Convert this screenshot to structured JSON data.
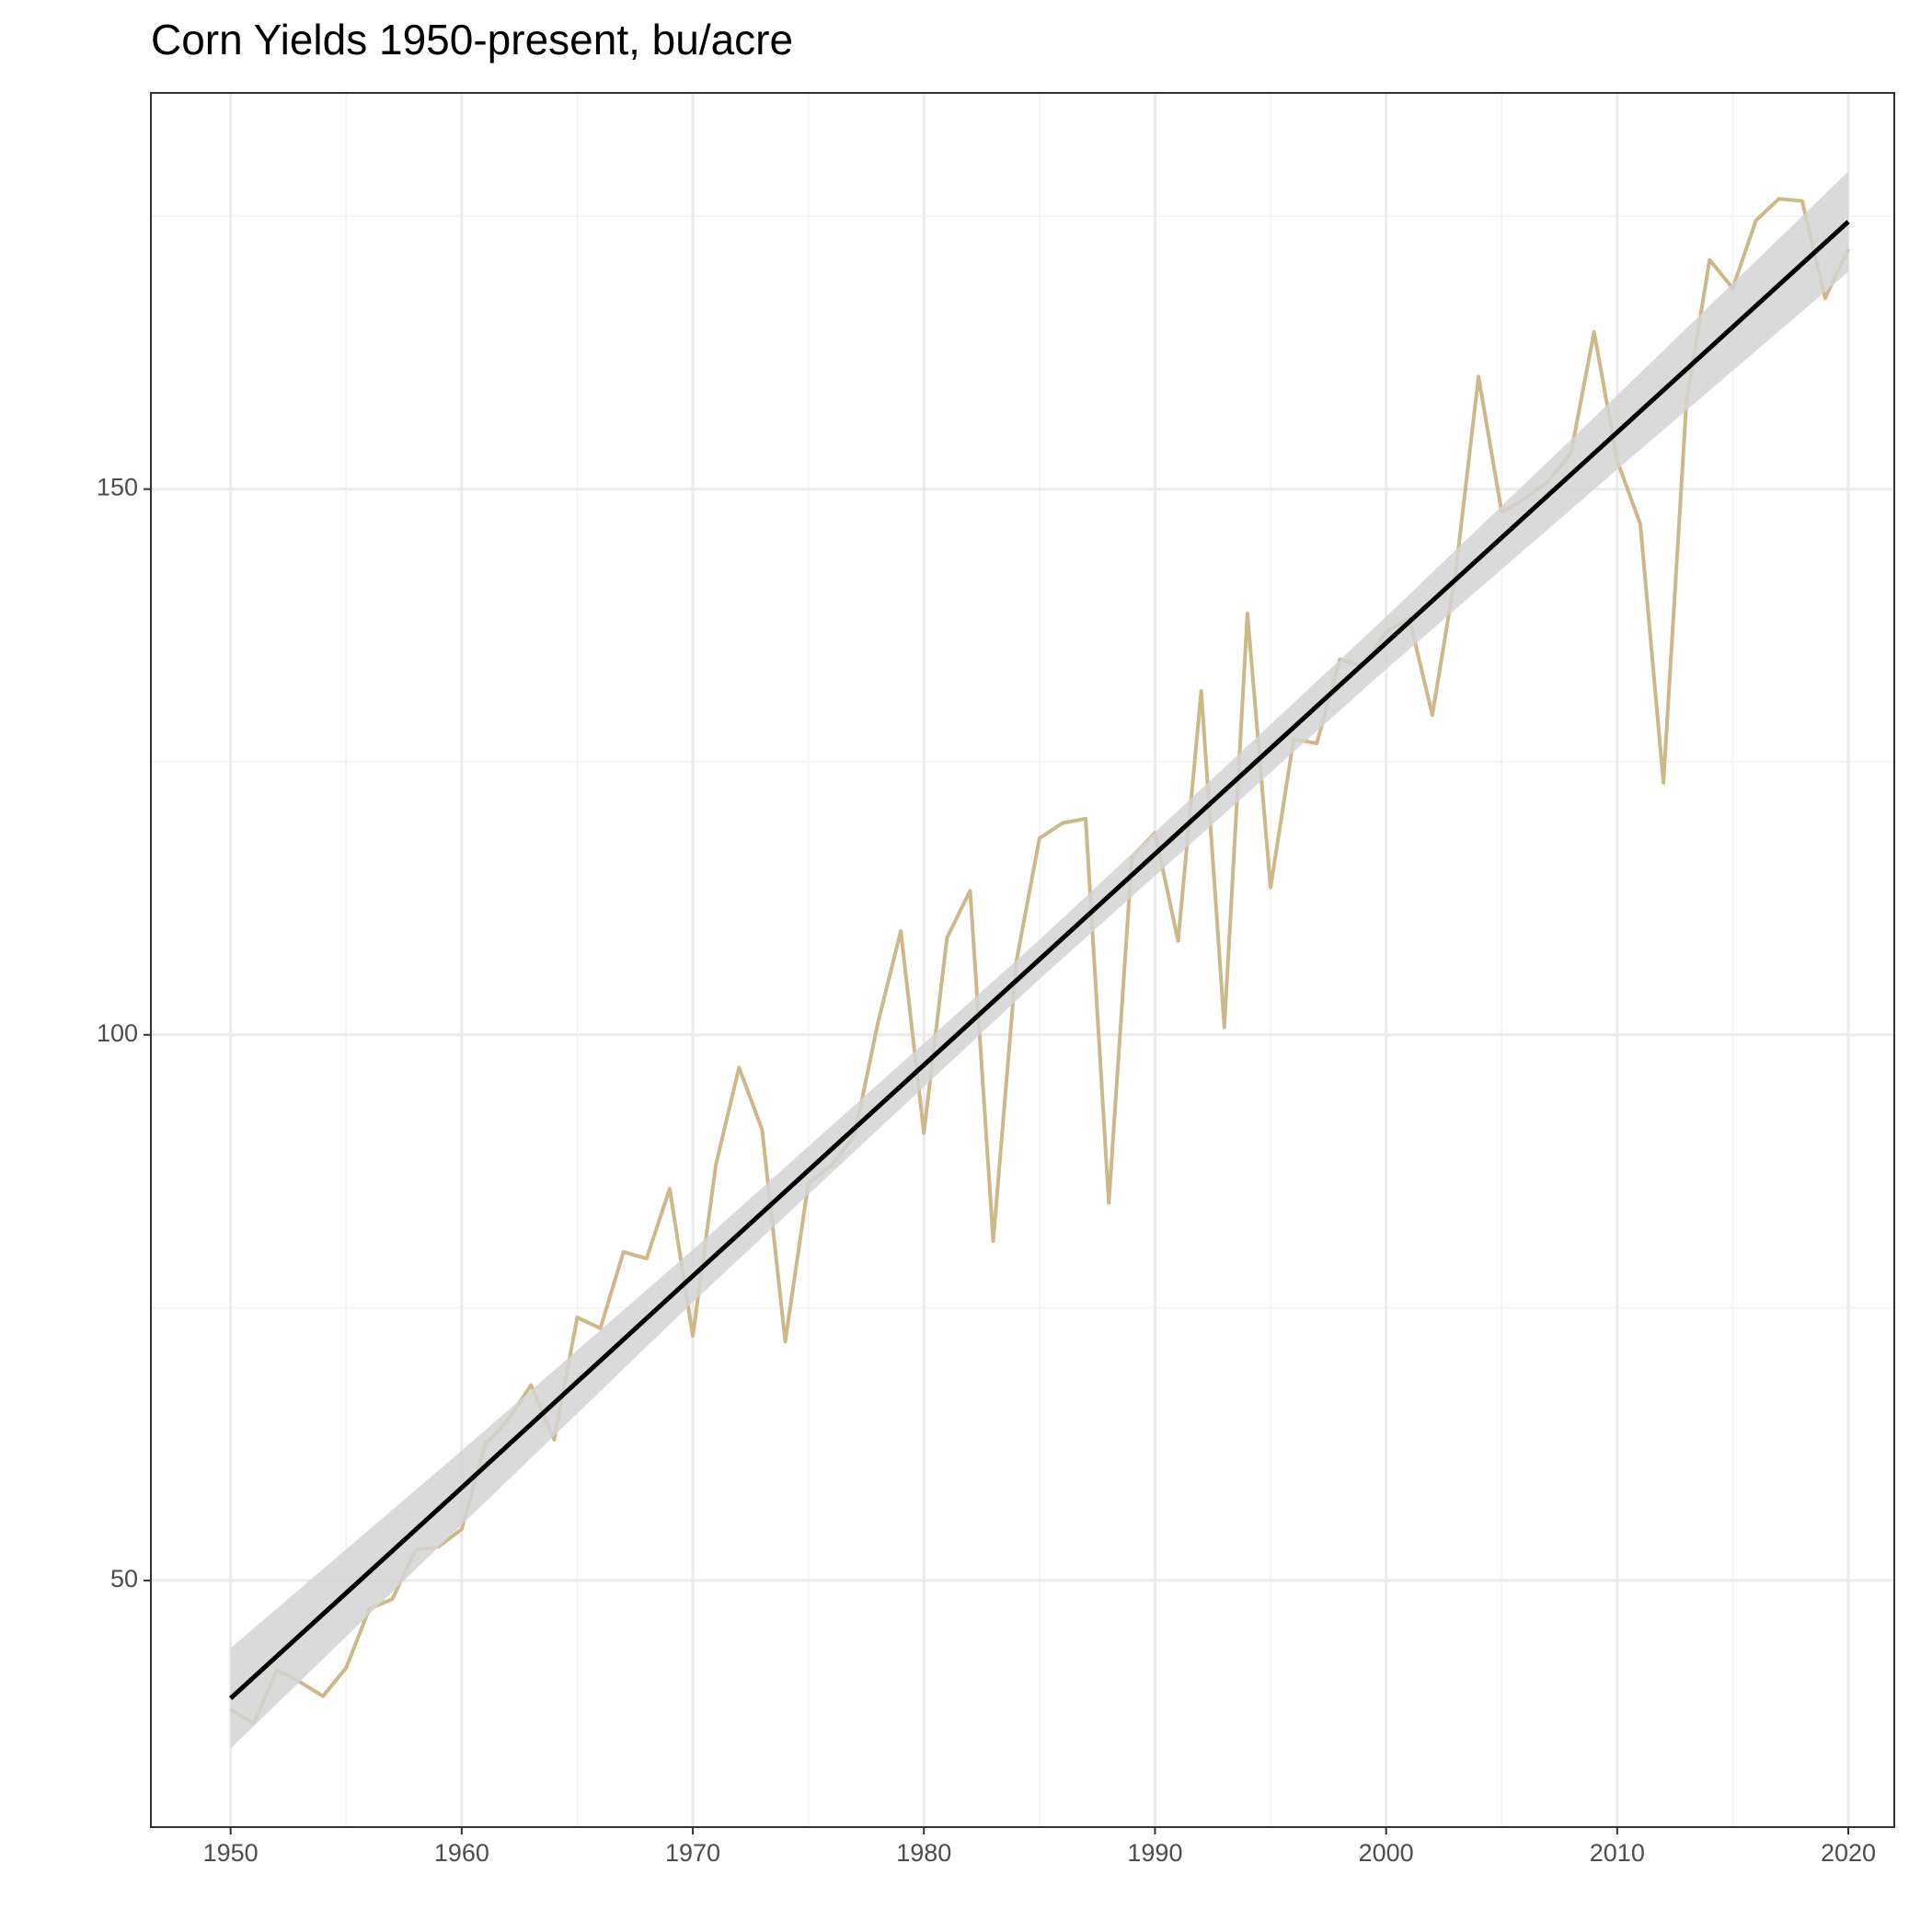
{
  "chart_data": {
    "type": "line",
    "title": "Corn Yields 1950-present, bu/acre",
    "x": [
      1950,
      1951,
      1952,
      1953,
      1954,
      1955,
      1956,
      1957,
      1958,
      1959,
      1960,
      1961,
      1962,
      1963,
      1964,
      1965,
      1966,
      1967,
      1968,
      1969,
      1970,
      1971,
      1972,
      1973,
      1974,
      1975,
      1976,
      1977,
      1978,
      1979,
      1980,
      1981,
      1982,
      1983,
      1984,
      1985,
      1986,
      1987,
      1988,
      1989,
      1990,
      1991,
      1992,
      1993,
      1994,
      1995,
      1996,
      1997,
      1998,
      1999,
      2000,
      2001,
      2002,
      2003,
      2004,
      2005,
      2006,
      2007,
      2008,
      2009,
      2010,
      2011,
      2012,
      2013,
      2014,
      2015,
      2016,
      2017,
      2018,
      2019,
      2020
    ],
    "series": [
      {
        "color": "#cdb88a",
        "values": [
          38.2,
          36.9,
          41.8,
          40.7,
          39.4,
          42.0,
          47.4,
          48.3,
          52.8,
          53.1,
          54.7,
          62.4,
          64.7,
          67.9,
          62.9,
          74.1,
          73.1,
          80.1,
          79.5,
          85.9,
          72.4,
          88.1,
          97.0,
          91.3,
          71.9,
          86.4,
          88.0,
          90.8,
          101.0,
          109.5,
          91.0,
          108.9,
          113.2,
          81.1,
          106.7,
          118.0,
          119.4,
          119.8,
          84.6,
          116.3,
          118.5,
          108.6,
          131.5,
          100.7,
          138.6,
          113.5,
          127.1,
          126.7,
          134.4,
          133.8,
          136.9,
          138.2,
          129.3,
          142.2,
          160.3,
          147.9,
          149.1,
          150.7,
          153.3,
          164.4,
          152.6,
          146.8,
          123.1,
          158.1,
          171.0,
          168.4,
          174.6,
          176.6,
          176.4,
          167.5,
          172.0
        ]
      }
    ],
    "trend": {
      "color": "#000000",
      "band_color": "#d3d3d3",
      "x": [
        1950,
        1960,
        1970,
        1985,
        2000,
        2010,
        2020
      ],
      "values": [
        39.2,
        58.5,
        77.9,
        106.9,
        135.9,
        155.2,
        174.5
      ],
      "lower": [
        34.6,
        55.1,
        75.5,
        105.1,
        133.5,
        151.8,
        169.9
      ],
      "upper": [
        43.8,
        61.9,
        80.3,
        108.7,
        138.3,
        158.6,
        179.1
      ]
    },
    "xlim": [
      1946.55,
      2021.99
    ],
    "ylim": [
      27.4,
      186.3
    ],
    "xticks": [
      1950,
      1960,
      1970,
      1980,
      1990,
      2000,
      2010,
      2020
    ],
    "yticks": [
      50,
      100,
      150
    ],
    "minor_xticks": [
      1955,
      1965,
      1975,
      1985,
      1995,
      2005,
      2015
    ],
    "minor_yticks": [
      75,
      125,
      175
    ],
    "grid": true
  }
}
